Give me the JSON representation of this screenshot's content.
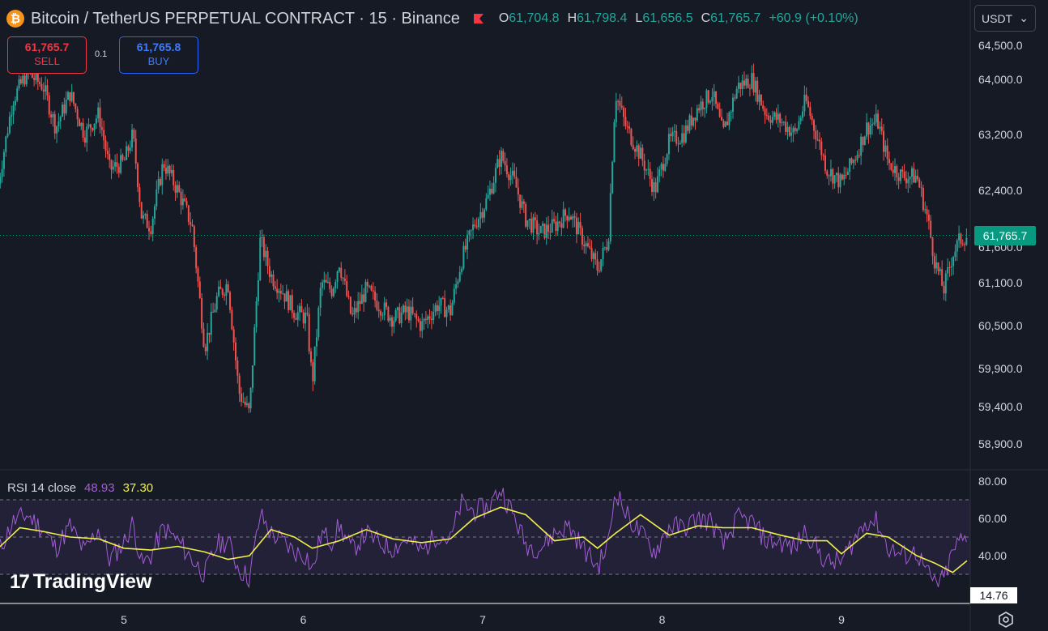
{
  "header": {
    "symbol": "Bitcoin / TetherUS PERPETUAL CONTRACT · 15 · Binance",
    "coin_icon": "bitcoin-icon",
    "flag_icon": "flag-icon",
    "ohlc": {
      "o_label": "O",
      "o": "61,704.8",
      "h_label": "H",
      "h": "61,798.4",
      "l_label": "L",
      "l": "61,656.5",
      "c_label": "C",
      "c": "61,765.7",
      "change": "+60.9 (+0.10%)"
    }
  },
  "trade": {
    "sell_price": "61,765.7",
    "sell_label": "SELL",
    "spread": "0.1",
    "buy_price": "61,765.8",
    "buy_label": "BUY"
  },
  "currency_select": {
    "value": "USDT"
  },
  "rsi": {
    "name": "RSI 14 close",
    "value": "48.93",
    "ma_value": "37.30",
    "scale_tag": "14.76"
  },
  "branding": {
    "logo_text": "TradingView"
  },
  "colors": {
    "background": "#161a25",
    "up": "#26a69a",
    "down": "#ef5350",
    "rsi_line": "#a35cd6",
    "rsi_ma": "#f0f04a",
    "current_price_tag": "#089981"
  },
  "chart_data": [
    {
      "type": "candlestick",
      "title": "Bitcoin / TetherUS PERPETUAL CONTRACT · 15 · Binance",
      "y_ticks": [
        64500,
        64000,
        63200,
        62400,
        61600,
        61100,
        60500,
        59900,
        59400,
        58900
      ],
      "y_tick_labels": [
        "64,500.0",
        "64,000.0",
        "63,200.0",
        "62,400.0",
        "61,600.0",
        "61,100.0",
        "60,500.0",
        "59,900.0",
        "59,400.0",
        "58,900.0"
      ],
      "x_ticks": [
        5,
        6,
        7,
        8,
        9
      ],
      "x_tick_labels": [
        "5",
        "6",
        "7",
        "8",
        "9"
      ],
      "current_price": 61765.7,
      "current_price_label": "61,765.7",
      "close_path": [
        {
          "day": 4.3,
          "price": 62500
        },
        {
          "day": 4.38,
          "price": 63700
        },
        {
          "day": 4.46,
          "price": 64100
        },
        {
          "day": 4.55,
          "price": 63900
        },
        {
          "day": 4.62,
          "price": 63300
        },
        {
          "day": 4.7,
          "price": 63800
        },
        {
          "day": 4.78,
          "price": 63200
        },
        {
          "day": 4.86,
          "price": 63500
        },
        {
          "day": 4.92,
          "price": 62700
        },
        {
          "day": 5.0,
          "price": 62800
        },
        {
          "day": 5.05,
          "price": 63200
        },
        {
          "day": 5.1,
          "price": 62000
        },
        {
          "day": 5.15,
          "price": 61900
        },
        {
          "day": 5.22,
          "price": 62800
        },
        {
          "day": 5.3,
          "price": 62400
        },
        {
          "day": 5.38,
          "price": 61900
        },
        {
          "day": 5.45,
          "price": 60200
        },
        {
          "day": 5.52,
          "price": 60900
        },
        {
          "day": 5.58,
          "price": 61100
        },
        {
          "day": 5.64,
          "price": 59600
        },
        {
          "day": 5.7,
          "price": 59300
        },
        {
          "day": 5.76,
          "price": 61700
        },
        {
          "day": 5.82,
          "price": 61200
        },
        {
          "day": 5.88,
          "price": 61000
        },
        {
          "day": 5.95,
          "price": 60700
        },
        {
          "day": 6.02,
          "price": 60600
        },
        {
          "day": 6.05,
          "price": 59700
        },
        {
          "day": 6.1,
          "price": 61100
        },
        {
          "day": 6.16,
          "price": 61000
        },
        {
          "day": 6.2,
          "price": 61400
        },
        {
          "day": 6.27,
          "price": 60600
        },
        {
          "day": 6.35,
          "price": 61000
        },
        {
          "day": 6.42,
          "price": 60800
        },
        {
          "day": 6.5,
          "price": 60600
        },
        {
          "day": 6.58,
          "price": 60700
        },
        {
          "day": 6.66,
          "price": 60500
        },
        {
          "day": 6.75,
          "price": 60800
        },
        {
          "day": 6.82,
          "price": 60700
        },
        {
          "day": 6.88,
          "price": 61400
        },
        {
          "day": 6.95,
          "price": 61900
        },
        {
          "day": 7.03,
          "price": 62300
        },
        {
          "day": 7.1,
          "price": 62900
        },
        {
          "day": 7.18,
          "price": 62500
        },
        {
          "day": 7.24,
          "price": 62000
        },
        {
          "day": 7.32,
          "price": 61800
        },
        {
          "day": 7.4,
          "price": 61900
        },
        {
          "day": 7.48,
          "price": 62100
        },
        {
          "day": 7.56,
          "price": 61700
        },
        {
          "day": 7.64,
          "price": 61300
        },
        {
          "day": 7.7,
          "price": 61700
        },
        {
          "day": 7.74,
          "price": 63800
        },
        {
          "day": 7.8,
          "price": 63300
        },
        {
          "day": 7.88,
          "price": 62900
        },
        {
          "day": 7.96,
          "price": 62400
        },
        {
          "day": 8.04,
          "price": 63100
        },
        {
          "day": 8.12,
          "price": 63200
        },
        {
          "day": 8.2,
          "price": 63600
        },
        {
          "day": 8.28,
          "price": 63800
        },
        {
          "day": 8.34,
          "price": 63200
        },
        {
          "day": 8.42,
          "price": 63900
        },
        {
          "day": 8.5,
          "price": 64000
        },
        {
          "day": 8.58,
          "price": 63500
        },
        {
          "day": 8.66,
          "price": 63400
        },
        {
          "day": 8.74,
          "price": 63200
        },
        {
          "day": 8.8,
          "price": 63700
        },
        {
          "day": 8.86,
          "price": 63200
        },
        {
          "day": 8.92,
          "price": 62700
        },
        {
          "day": 9.0,
          "price": 62500
        },
        {
          "day": 9.08,
          "price": 62900
        },
        {
          "day": 9.14,
          "price": 63300
        },
        {
          "day": 9.2,
          "price": 63400
        },
        {
          "day": 9.26,
          "price": 62800
        },
        {
          "day": 9.34,
          "price": 62600
        },
        {
          "day": 9.42,
          "price": 62600
        },
        {
          "day": 9.48,
          "price": 62000
        },
        {
          "day": 9.52,
          "price": 61400
        },
        {
          "day": 9.57,
          "price": 61000
        },
        {
          "day": 9.62,
          "price": 61500
        },
        {
          "day": 9.66,
          "price": 61700
        },
        {
          "day": 9.7,
          "price": 61766
        }
      ]
    },
    {
      "type": "line",
      "title": "RSI 14 close",
      "y_ticks": [
        80,
        60,
        40
      ],
      "y_tick_labels": [
        "80.00",
        "60.00",
        "40.00"
      ],
      "band": [
        30,
        70
      ],
      "midline": 50,
      "series": [
        {
          "name": "RSI 14 close",
          "color": "#a35cd6",
          "points": [
            {
              "day": 4.3,
              "v": 42
            },
            {
              "day": 4.38,
              "v": 58
            },
            {
              "day": 4.46,
              "v": 62
            },
            {
              "day": 4.55,
              "v": 54
            },
            {
              "day": 4.62,
              "v": 44
            },
            {
              "day": 4.7,
              "v": 56
            },
            {
              "day": 4.78,
              "v": 42
            },
            {
              "day": 4.86,
              "v": 55
            },
            {
              "day": 4.92,
              "v": 38
            },
            {
              "day": 5.0,
              "v": 47
            },
            {
              "day": 5.05,
              "v": 58
            },
            {
              "day": 5.1,
              "v": 35
            },
            {
              "day": 5.15,
              "v": 40
            },
            {
              "day": 5.22,
              "v": 55
            },
            {
              "day": 5.3,
              "v": 48
            },
            {
              "day": 5.38,
              "v": 38
            },
            {
              "day": 5.45,
              "v": 30
            },
            {
              "day": 5.52,
              "v": 46
            },
            {
              "day": 5.58,
              "v": 48
            },
            {
              "day": 5.64,
              "v": 33
            },
            {
              "day": 5.7,
              "v": 28
            },
            {
              "day": 5.76,
              "v": 62
            },
            {
              "day": 5.82,
              "v": 52
            },
            {
              "day": 5.88,
              "v": 48
            },
            {
              "day": 5.95,
              "v": 42
            },
            {
              "day": 6.02,
              "v": 40
            },
            {
              "day": 6.05,
              "v": 31
            },
            {
              "day": 6.1,
              "v": 52
            },
            {
              "day": 6.16,
              "v": 48
            },
            {
              "day": 6.2,
              "v": 56
            },
            {
              "day": 6.27,
              "v": 43
            },
            {
              "day": 6.35,
              "v": 52
            },
            {
              "day": 6.42,
              "v": 47
            },
            {
              "day": 6.5,
              "v": 44
            },
            {
              "day": 6.58,
              "v": 49
            },
            {
              "day": 6.66,
              "v": 42
            },
            {
              "day": 6.75,
              "v": 52
            },
            {
              "day": 6.82,
              "v": 48
            },
            {
              "day": 6.88,
              "v": 68
            },
            {
              "day": 6.95,
              "v": 64
            },
            {
              "day": 7.03,
              "v": 66
            },
            {
              "day": 7.1,
              "v": 76
            },
            {
              "day": 7.18,
              "v": 60
            },
            {
              "day": 7.24,
              "v": 46
            },
            {
              "day": 7.32,
              "v": 44
            },
            {
              "day": 7.4,
              "v": 52
            },
            {
              "day": 7.48,
              "v": 56
            },
            {
              "day": 7.56,
              "v": 44
            },
            {
              "day": 7.64,
              "v": 34
            },
            {
              "day": 7.7,
              "v": 46
            },
            {
              "day": 7.74,
              "v": 76
            },
            {
              "day": 7.8,
              "v": 62
            },
            {
              "day": 7.88,
              "v": 52
            },
            {
              "day": 7.96,
              "v": 42
            },
            {
              "day": 8.04,
              "v": 56
            },
            {
              "day": 8.12,
              "v": 55
            },
            {
              "day": 8.2,
              "v": 60
            },
            {
              "day": 8.28,
              "v": 58
            },
            {
              "day": 8.34,
              "v": 45
            },
            {
              "day": 8.42,
              "v": 60
            },
            {
              "day": 8.5,
              "v": 58
            },
            {
              "day": 8.58,
              "v": 48
            },
            {
              "day": 8.66,
              "v": 47
            },
            {
              "day": 8.74,
              "v": 44
            },
            {
              "day": 8.8,
              "v": 54
            },
            {
              "day": 8.86,
              "v": 44
            },
            {
              "day": 8.92,
              "v": 36
            },
            {
              "day": 9.0,
              "v": 37
            },
            {
              "day": 9.08,
              "v": 50
            },
            {
              "day": 9.14,
              "v": 59
            },
            {
              "day": 9.2,
              "v": 58
            },
            {
              "day": 9.26,
              "v": 44
            },
            {
              "day": 9.34,
              "v": 40
            },
            {
              "day": 9.42,
              "v": 42
            },
            {
              "day": 9.48,
              "v": 30
            },
            {
              "day": 9.52,
              "v": 25
            },
            {
              "day": 9.57,
              "v": 27
            },
            {
              "day": 9.62,
              "v": 42
            },
            {
              "day": 9.66,
              "v": 48
            },
            {
              "day": 9.7,
              "v": 48.93
            }
          ]
        },
        {
          "name": "RSI MA",
          "color": "#f0f04a",
          "points": [
            {
              "day": 4.3,
              "v": 44
            },
            {
              "day": 4.42,
              "v": 55
            },
            {
              "day": 4.55,
              "v": 53
            },
            {
              "day": 4.7,
              "v": 50
            },
            {
              "day": 4.86,
              "v": 49
            },
            {
              "day": 5.0,
              "v": 44
            },
            {
              "day": 5.15,
              "v": 43
            },
            {
              "day": 5.3,
              "v": 45
            },
            {
              "day": 5.45,
              "v": 42
            },
            {
              "day": 5.58,
              "v": 38
            },
            {
              "day": 5.7,
              "v": 40
            },
            {
              "day": 5.82,
              "v": 54
            },
            {
              "day": 5.95,
              "v": 50
            },
            {
              "day": 6.05,
              "v": 44
            },
            {
              "day": 6.2,
              "v": 48
            },
            {
              "day": 6.35,
              "v": 54
            },
            {
              "day": 6.5,
              "v": 49
            },
            {
              "day": 6.66,
              "v": 47
            },
            {
              "day": 6.82,
              "v": 49
            },
            {
              "day": 6.95,
              "v": 60
            },
            {
              "day": 7.1,
              "v": 66
            },
            {
              "day": 7.24,
              "v": 62
            },
            {
              "day": 7.4,
              "v": 48
            },
            {
              "day": 7.56,
              "v": 50
            },
            {
              "day": 7.64,
              "v": 44
            },
            {
              "day": 7.74,
              "v": 52
            },
            {
              "day": 7.88,
              "v": 62
            },
            {
              "day": 8.04,
              "v": 51
            },
            {
              "day": 8.2,
              "v": 56
            },
            {
              "day": 8.34,
              "v": 55
            },
            {
              "day": 8.5,
              "v": 55
            },
            {
              "day": 8.66,
              "v": 51
            },
            {
              "day": 8.8,
              "v": 48
            },
            {
              "day": 8.92,
              "v": 48
            },
            {
              "day": 9.0,
              "v": 41
            },
            {
              "day": 9.14,
              "v": 52
            },
            {
              "day": 9.26,
              "v": 50
            },
            {
              "day": 9.42,
              "v": 40
            },
            {
              "day": 9.52,
              "v": 36
            },
            {
              "day": 9.62,
              "v": 31
            },
            {
              "day": 9.7,
              "v": 37.3
            }
          ]
        }
      ]
    }
  ]
}
